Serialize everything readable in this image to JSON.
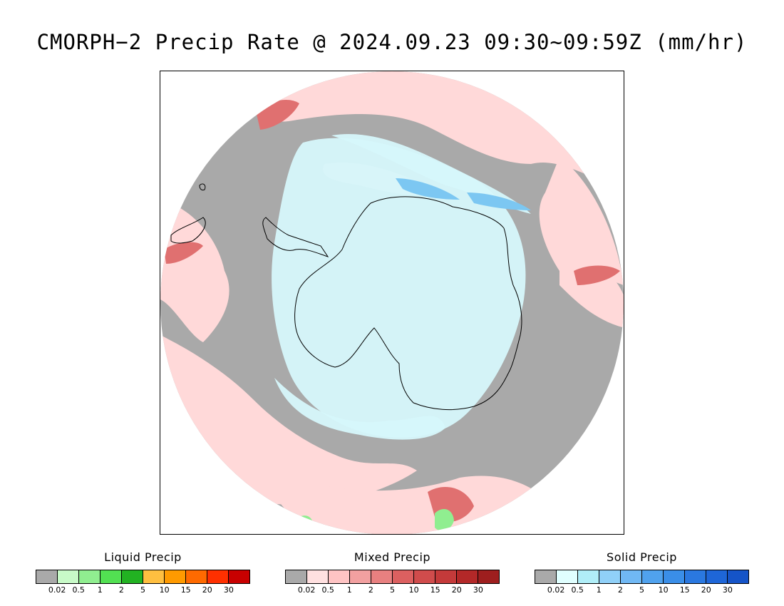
{
  "title": "CMORPH−2 Precip Rate @ 2024.09.23 09:30~09:59Z (mm/hr)",
  "map": {
    "projection": "south-polar-stereographic",
    "colors": {
      "no_precip": "#a9a9a9",
      "ocean_background": "#ffffff",
      "mixed_light": "#ffd9d9",
      "mixed_medium": "#f2a0a0",
      "mixed_strong": "#e07070",
      "solid_light": "#d6f7fb",
      "solid_medium": "#7cc7f2",
      "solid_strong": "#3a8ee8",
      "liquid_light": "#90ee90",
      "coastline": "#000000"
    }
  },
  "legends": [
    {
      "title": "Liquid Precip",
      "colors": [
        "#a9a9a9",
        "#c8fac8",
        "#90ee90",
        "#52e052",
        "#22b222",
        "#ffbf40",
        "#ff9a00",
        "#ff6a00",
        "#ff3000",
        "#c80000"
      ],
      "ticks": [
        "0.02",
        "0.5",
        "1",
        "2",
        "5",
        "10",
        "15",
        "20",
        "30"
      ]
    },
    {
      "title": "Mixed Precip",
      "colors": [
        "#a9a9a9",
        "#ffe0e0",
        "#ffc4c4",
        "#f2a0a0",
        "#e88080",
        "#dc6060",
        "#d04c4c",
        "#c43a3a",
        "#b32828",
        "#9e1e1e"
      ],
      "ticks": [
        "0.02",
        "0.5",
        "1",
        "2",
        "5",
        "10",
        "15",
        "20",
        "30"
      ]
    },
    {
      "title": "Solid Precip",
      "colors": [
        "#a9a9a9",
        "#e0ffff",
        "#b0eef8",
        "#90d0f8",
        "#70b8f4",
        "#50a2ee",
        "#3a8ee8",
        "#2a78e0",
        "#1e66d8",
        "#1554c8"
      ],
      "ticks": [
        "0.02",
        "0.5",
        "1",
        "2",
        "5",
        "10",
        "15",
        "20",
        "30"
      ]
    }
  ]
}
